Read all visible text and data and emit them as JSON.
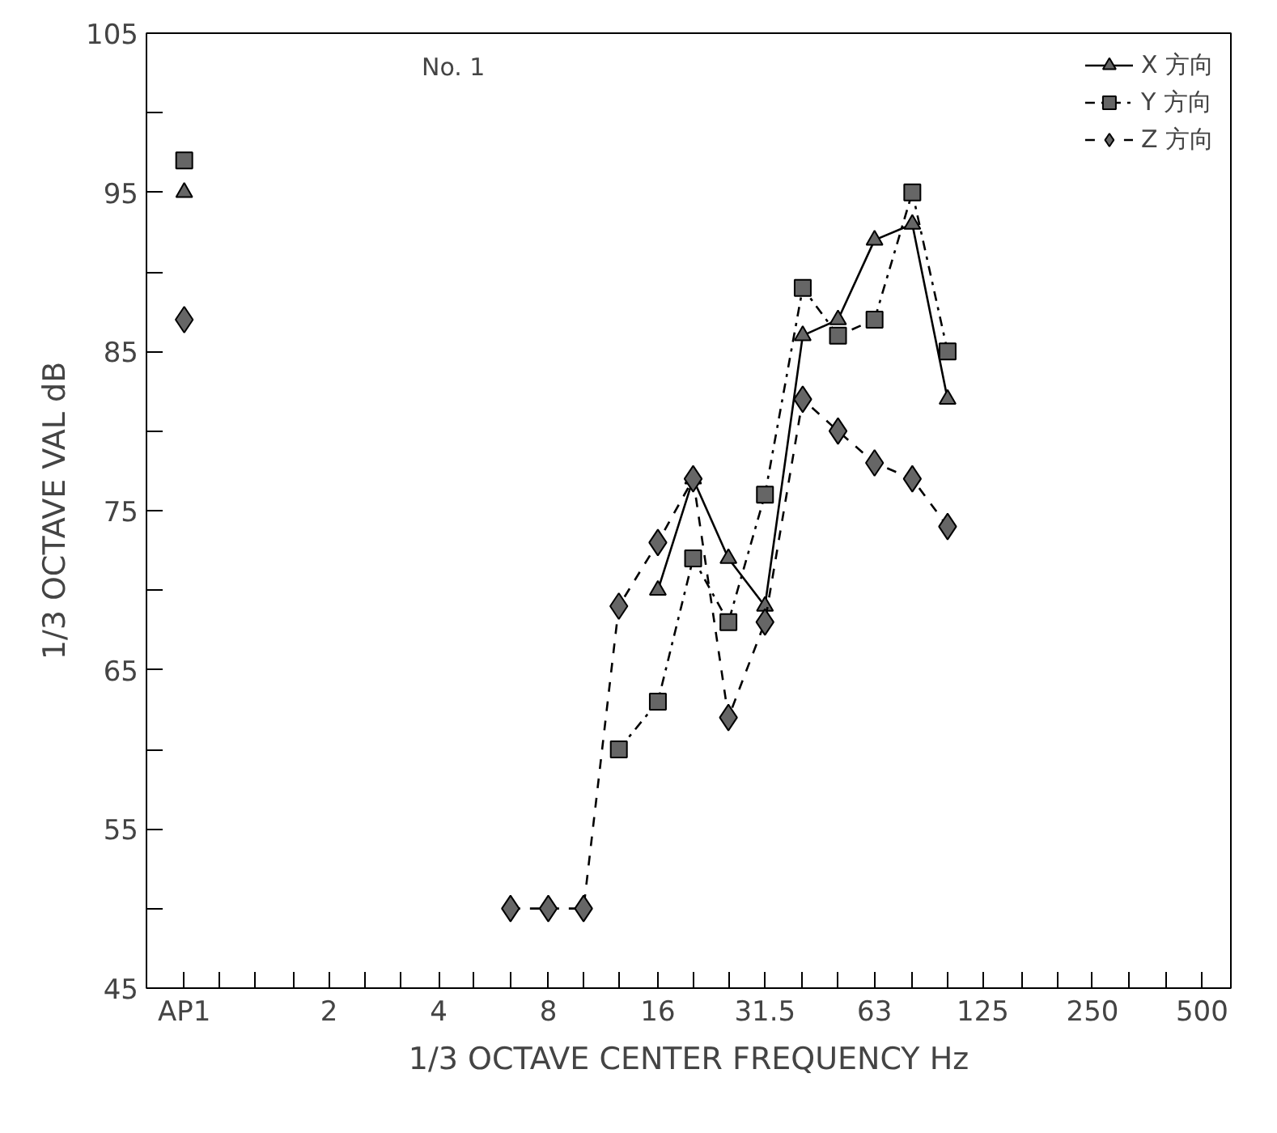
{
  "chart_data": {
    "type": "line",
    "xlabel": "1/3 OCTAVE CENTER FREQUENCY Hz",
    "ylabel": "1/3 OCTAVE VAL dB",
    "annotations": [
      "No. 1"
    ],
    "series": [
      {
        "name": "X 方向",
        "color": "#000000",
        "marker": "triangle",
        "line_style": "solid",
        "x": [
          0.8,
          1,
          16,
          20,
          25,
          31.5,
          40,
          50,
          63,
          80,
          100
        ],
        "values": [
          95,
          null,
          70,
          77,
          72,
          69,
          86,
          87,
          92,
          93,
          82
        ]
      },
      {
        "name": "Y 方向",
        "color": "#000000",
        "marker": "square",
        "line_style": "dashdot",
        "x": [
          0.8,
          1,
          12.5,
          16,
          20,
          25,
          31.5,
          40,
          50,
          63,
          80,
          100
        ],
        "values": [
          97,
          null,
          60,
          63,
          72,
          68,
          76,
          89,
          86,
          87,
          95,
          85
        ]
      },
      {
        "name": "Z 方向",
        "color": "#000000",
        "marker": "diamond",
        "line_style": "dashed",
        "x": [
          0.8,
          1,
          6.3,
          8,
          10,
          12.5,
          16,
          20,
          25,
          31.5,
          40,
          50,
          63,
          80,
          100
        ],
        "values": [
          87,
          null,
          50,
          50,
          50,
          69,
          73,
          77,
          62,
          68,
          82,
          80,
          78,
          77,
          74
        ]
      }
    ],
    "log": "x",
    "xlim": [
      0.63,
      600
    ],
    "xticks": [
      {
        "value": 0.8,
        "label": "AP1"
      },
      {
        "value": 1,
        "label": null
      },
      {
        "value": 1.25,
        "label": null
      },
      {
        "value": 1.6,
        "label": null
      },
      2,
      {
        "value": 2.5,
        "label": null
      },
      {
        "value": 3.15,
        "label": null
      },
      4,
      {
        "value": 5,
        "label": null
      },
      {
        "value": 6.3,
        "label": null
      },
      8,
      {
        "value": 10,
        "label": null
      },
      {
        "value": 12.5,
        "label": null
      },
      16,
      {
        "value": 20,
        "label": null
      },
      {
        "value": 25,
        "label": null
      },
      31.5,
      {
        "value": 40,
        "label": null
      },
      {
        "value": 50,
        "label": null
      },
      63,
      {
        "value": 80,
        "label": null
      },
      {
        "value": 100,
        "label": null
      },
      125,
      {
        "value": 160,
        "label": null
      },
      {
        "value": 200,
        "label": null
      },
      250,
      {
        "value": 315,
        "label": null
      },
      {
        "value": 400,
        "label": null
      },
      500
    ],
    "ylim": [
      45,
      105
    ],
    "yticks": [
      45,
      {
        "value": 50,
        "label": null
      },
      55,
      {
        "value": 60,
        "label": null
      },
      65,
      {
        "value": 70,
        "label": null
      },
      75,
      {
        "value": 80,
        "label": null
      },
      85,
      {
        "value": 90,
        "label": null
      },
      95,
      {
        "value": 100,
        "label": null
      },
      105
    ],
    "grid": false,
    "legend": "top right"
  }
}
